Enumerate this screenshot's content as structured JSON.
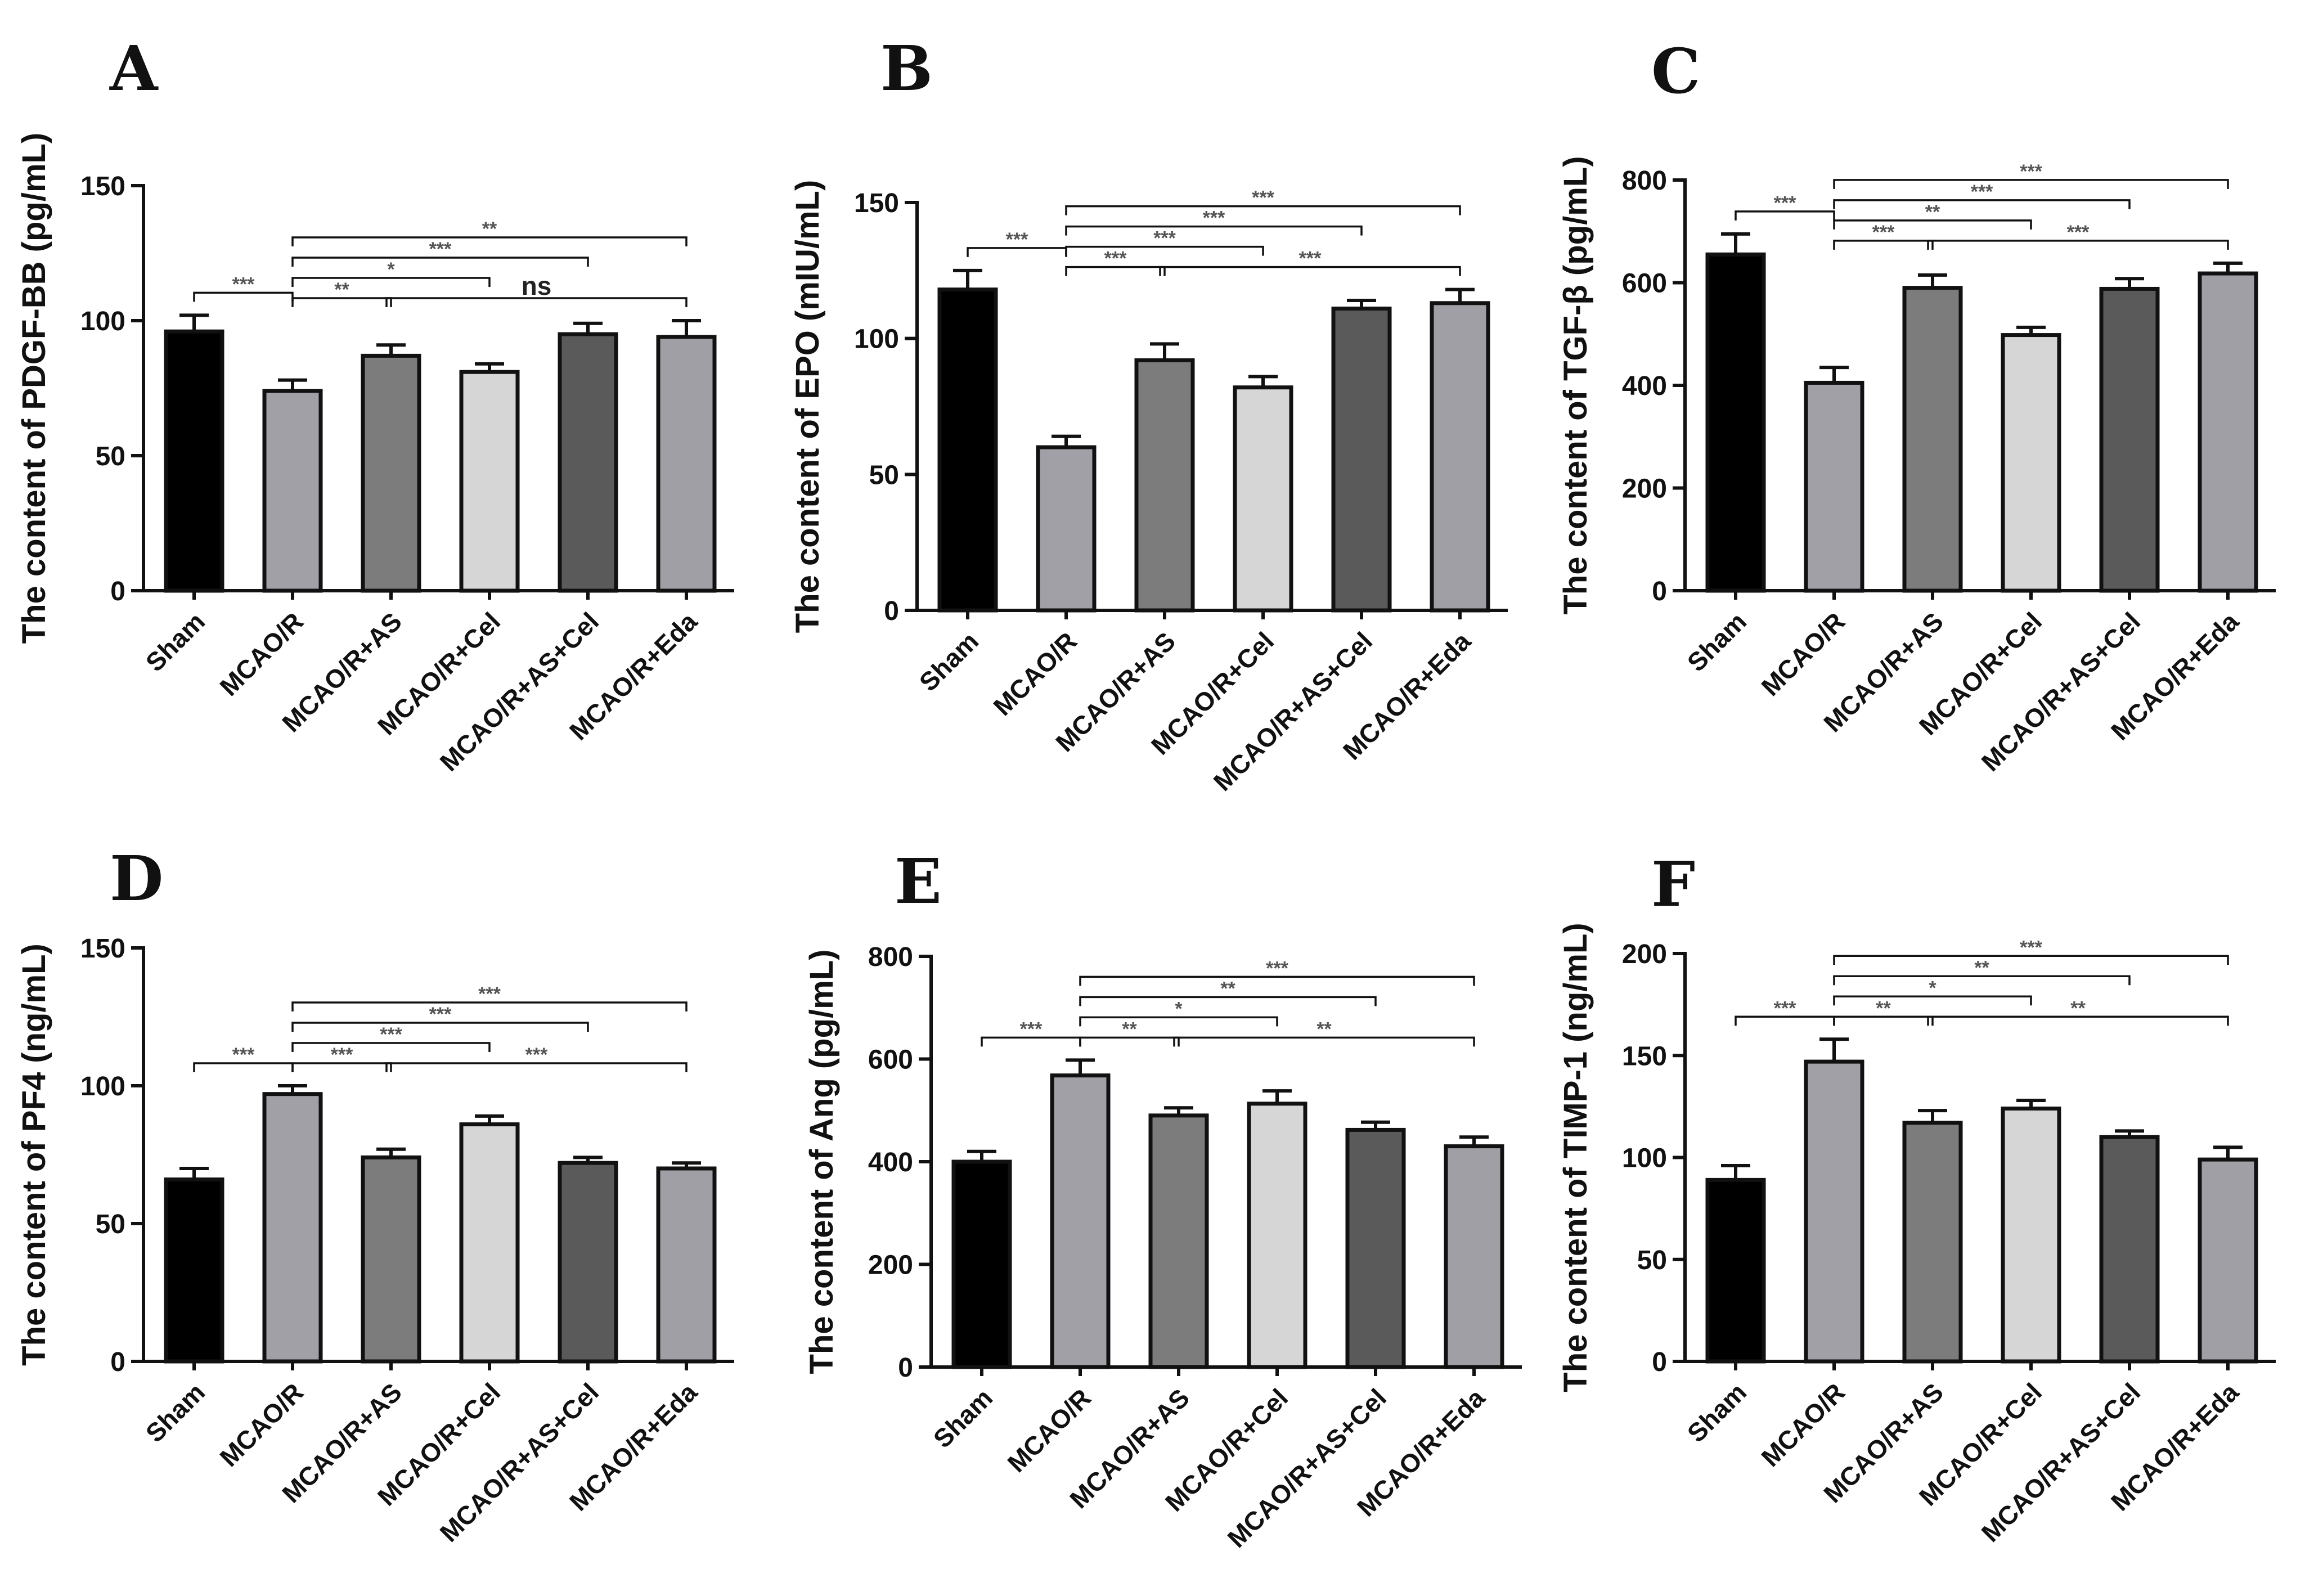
{
  "categories": [
    "Sham",
    "MCAO/R",
    "MCAO/R+AS",
    "MCAO/R+Cel",
    "MCAO/R+AS+Cel",
    "MCAO/R+Eda"
  ],
  "colors": [
    "#000000",
    "#a0a0a6",
    "#7c7c7c",
    "#d6d6d6",
    "#5a5a5a",
    "#9f9fa5"
  ],
  "chart_data": [
    {
      "type": "bar",
      "panel": "A",
      "ylabel": "The content of PDGF-BB (pg/mL)",
      "ylim": [
        0,
        150
      ],
      "yticks": [
        0,
        50,
        100,
        150
      ],
      "values": [
        96,
        74,
        87,
        81,
        95,
        94
      ],
      "errors": [
        6,
        4,
        4,
        3,
        4,
        6
      ],
      "comparisons": [
        {
          "from": 0,
          "to": 1,
          "level": 0,
          "label": "***"
        },
        {
          "from": 1,
          "to": 2,
          "level": 0,
          "label": "**"
        },
        {
          "from": 2,
          "to": 5,
          "level": 0,
          "label": "ns"
        },
        {
          "from": 1,
          "to": 3,
          "level": 1,
          "label": "*"
        },
        {
          "from": 1,
          "to": 4,
          "level": 2,
          "label": "***"
        },
        {
          "from": 1,
          "to": 5,
          "level": 3,
          "label": "**"
        }
      ]
    },
    {
      "type": "bar",
      "panel": "B",
      "ylabel": "The content of EPO (mIU/mL)",
      "ylim": [
        0,
        150
      ],
      "yticks": [
        0,
        50,
        100,
        150
      ],
      "values": [
        118,
        60,
        92,
        82,
        111,
        113
      ],
      "errors": [
        7,
        4,
        6,
        4,
        3,
        5
      ],
      "comparisons": [
        {
          "from": 0,
          "to": 1,
          "level": 0,
          "label": "***"
        },
        {
          "from": 1,
          "to": 2,
          "level": 0,
          "label": "***"
        },
        {
          "from": 2,
          "to": 5,
          "level": 0,
          "label": "***"
        },
        {
          "from": 1,
          "to": 3,
          "level": 1,
          "label": "***"
        },
        {
          "from": 1,
          "to": 4,
          "level": 2,
          "label": "***"
        },
        {
          "from": 1,
          "to": 5,
          "level": 3,
          "label": "***"
        }
      ]
    },
    {
      "type": "bar",
      "panel": "C",
      "ylabel": "The content of TGF-β (pg/mL)",
      "ylim": [
        0,
        800
      ],
      "yticks": [
        0,
        200,
        400,
        600,
        800
      ],
      "values": [
        655,
        405,
        590,
        498,
        588,
        618
      ],
      "errors": [
        40,
        30,
        25,
        15,
        20,
        20
      ],
      "comparisons": [
        {
          "from": 0,
          "to": 1,
          "level": 0,
          "label": "***"
        },
        {
          "from": 1,
          "to": 2,
          "level": 0,
          "label": "***"
        },
        {
          "from": 2,
          "to": 5,
          "level": 0,
          "label": "***"
        },
        {
          "from": 1,
          "to": 3,
          "level": 1,
          "label": "**"
        },
        {
          "from": 1,
          "to": 4,
          "level": 2,
          "label": "***"
        },
        {
          "from": 1,
          "to": 5,
          "level": 3,
          "label": "***"
        }
      ]
    },
    {
      "type": "bar",
      "panel": "D",
      "ylabel": "The content of PF4 (ng/mL)",
      "ylim": [
        0,
        150
      ],
      "yticks": [
        0,
        50,
        100,
        150
      ],
      "values": [
        66,
        97,
        74,
        86,
        72,
        70
      ],
      "errors": [
        4,
        3,
        3,
        3,
        2,
        2
      ],
      "comparisons": [
        {
          "from": 0,
          "to": 1,
          "level": 0,
          "label": "***"
        },
        {
          "from": 1,
          "to": 2,
          "level": 0,
          "label": "***"
        },
        {
          "from": 2,
          "to": 5,
          "level": 0,
          "label": "***"
        },
        {
          "from": 1,
          "to": 3,
          "level": 1,
          "label": "***"
        },
        {
          "from": 1,
          "to": 4,
          "level": 2,
          "label": "***"
        },
        {
          "from": 1,
          "to": 5,
          "level": 3,
          "label": "***"
        }
      ]
    },
    {
      "type": "bar",
      "panel": "E",
      "ylabel": "The content of Ang (pg/mL)",
      "ylim": [
        0,
        800
      ],
      "yticks": [
        0,
        200,
        400,
        600,
        800
      ],
      "values": [
        400,
        568,
        490,
        513,
        462,
        430
      ],
      "errors": [
        20,
        30,
        15,
        25,
        15,
        18
      ],
      "comparisons": [
        {
          "from": 0,
          "to": 1,
          "level": 0,
          "label": "***"
        },
        {
          "from": 1,
          "to": 2,
          "level": 0,
          "label": "**"
        },
        {
          "from": 2,
          "to": 5,
          "level": 0,
          "label": "**"
        },
        {
          "from": 1,
          "to": 3,
          "level": 1,
          "label": "*"
        },
        {
          "from": 1,
          "to": 4,
          "level": 2,
          "label": "**"
        },
        {
          "from": 1,
          "to": 5,
          "level": 3,
          "label": "***"
        }
      ]
    },
    {
      "type": "bar",
      "panel": "F",
      "ylabel": "The content of TIMP-1 (ng/mL)",
      "ylim": [
        0,
        200
      ],
      "yticks": [
        0,
        50,
        100,
        150,
        200
      ],
      "values": [
        89,
        147,
        117,
        124,
        110,
        99
      ],
      "errors": [
        7,
        11,
        6,
        4,
        3,
        6
      ],
      "comparisons": [
        {
          "from": 0,
          "to": 1,
          "level": 0,
          "label": "***"
        },
        {
          "from": 1,
          "to": 2,
          "level": 0,
          "label": "**"
        },
        {
          "from": 2,
          "to": 5,
          "level": 0,
          "label": "**"
        },
        {
          "from": 1,
          "to": 3,
          "level": 1,
          "label": "*"
        },
        {
          "from": 1,
          "to": 4,
          "level": 2,
          "label": "**"
        },
        {
          "from": 1,
          "to": 5,
          "level": 3,
          "label": "***"
        }
      ]
    }
  ]
}
